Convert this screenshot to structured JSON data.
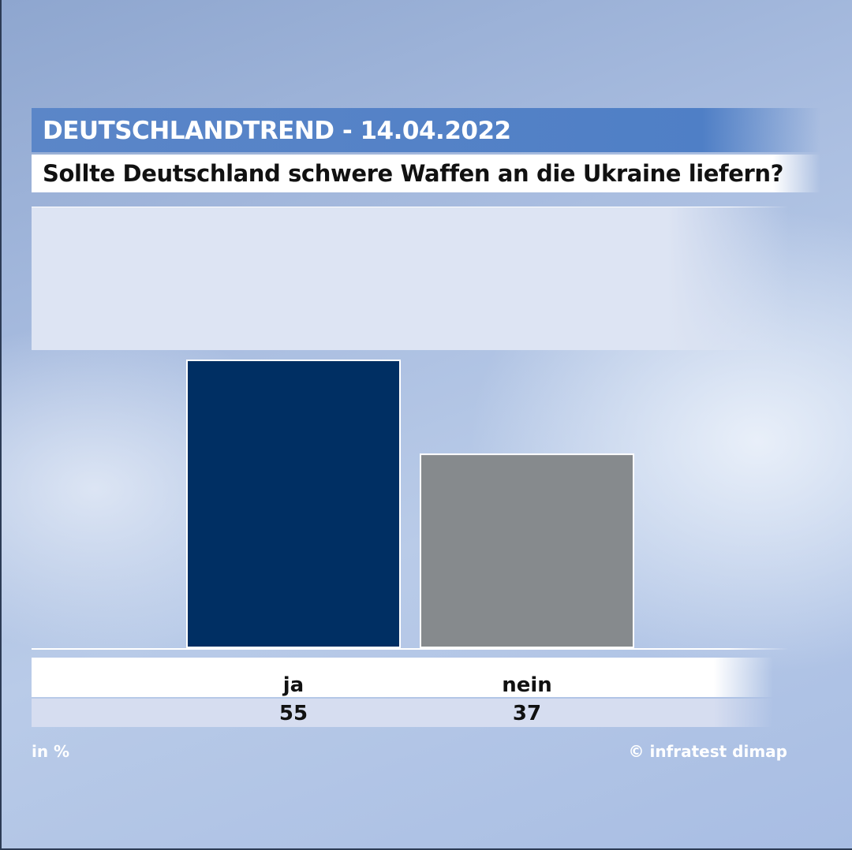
{
  "header": {
    "title": "DEUTSCHLANDTREND - 14.04.2022",
    "question": "Sollte Deutschland schwere Waffen an die Ukraine liefern?"
  },
  "footer": {
    "unit_note": "in %",
    "source": "© infratest dimap"
  },
  "colors": {
    "ja": "#002f63",
    "nein": "#868a8d",
    "header_band": "#4f7fc6"
  },
  "chart_data": {
    "type": "bar",
    "title": "Sollte Deutschland schwere Waffen an die Ukraine liefern?",
    "categories": [
      "ja",
      "nein"
    ],
    "values": [
      55,
      37
    ],
    "value_labels": [
      "55",
      "37"
    ],
    "colors": [
      "#002f63",
      "#868a8d"
    ],
    "unit": "%",
    "xlabel": "",
    "ylabel": "",
    "grid": false
  }
}
